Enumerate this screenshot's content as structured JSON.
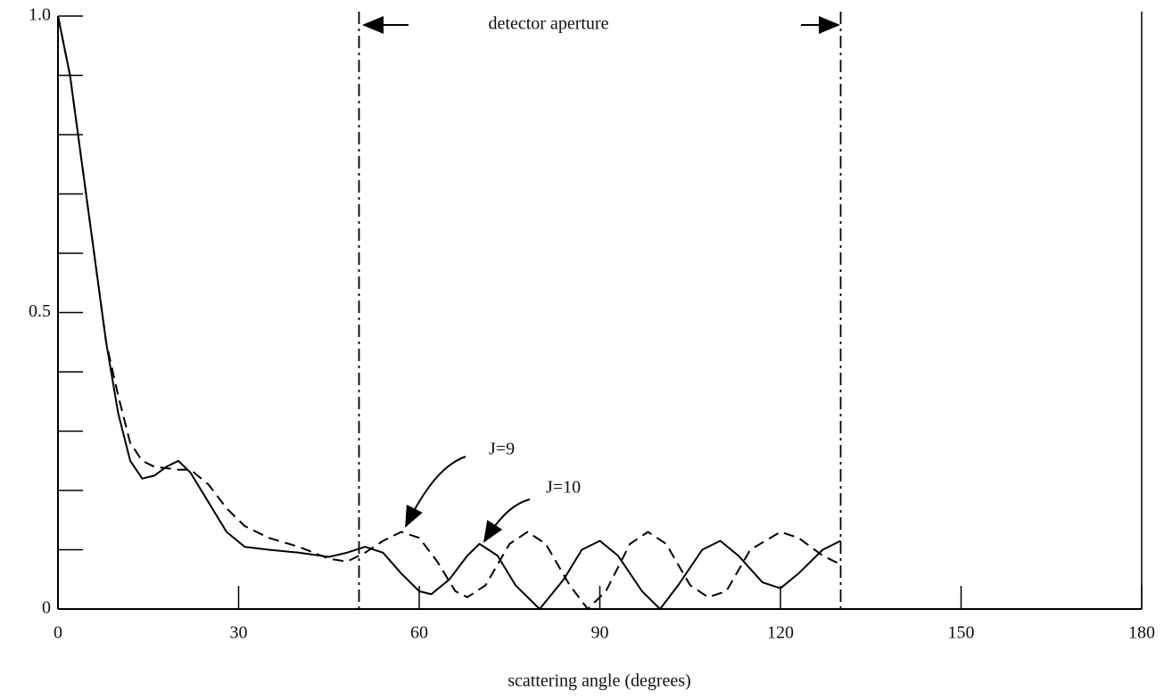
{
  "chart_data": {
    "type": "line",
    "xlabel": "scattering angle (degrees)",
    "xlim": [
      0,
      180
    ],
    "xticks": [
      0,
      30,
      60,
      90,
      120,
      150,
      180
    ],
    "ylim": [
      0,
      1
    ],
    "yticks": [
      0,
      {
        "value": 0.5,
        "label": "0.5"
      },
      {
        "value": 1,
        "label": "1.0"
      }
    ],
    "yminorticks": [
      0.1,
      0.2,
      0.3,
      0.4,
      0.6,
      0.7,
      0.8,
      0.9
    ],
    "vlines": [
      50,
      130
    ],
    "annotation": "detector aperture",
    "series": [
      {
        "name": "J=10",
        "color": "#000000",
        "style": "solid",
        "x": [
          0,
          2,
          4,
          6,
          8,
          10,
          12,
          14,
          16,
          18,
          20,
          22,
          25,
          28,
          31,
          35,
          40,
          45,
          48,
          51,
          54,
          57,
          60,
          62,
          65,
          68,
          70,
          73,
          76,
          80,
          84,
          87,
          90,
          93,
          97,
          100,
          103,
          107,
          110,
          113,
          117,
          120,
          123,
          127,
          130
        ],
        "values": [
          1.0,
          0.9,
          0.75,
          0.6,
          0.45,
          0.33,
          0.25,
          0.22,
          0.225,
          0.24,
          0.25,
          0.23,
          0.18,
          0.13,
          0.105,
          0.1,
          0.095,
          0.088,
          0.095,
          0.105,
          0.095,
          0.06,
          0.03,
          0.025,
          0.05,
          0.09,
          0.11,
          0.09,
          0.04,
          0.0,
          0.05,
          0.1,
          0.115,
          0.09,
          0.03,
          0.0,
          0.04,
          0.1,
          0.115,
          0.09,
          0.045,
          0.035,
          0.06,
          0.1,
          0.115
        ]
      },
      {
        "name": "J=9",
        "color": "#000000",
        "style": "dashed",
        "x": [
          0,
          2,
          4,
          6,
          8,
          10,
          12,
          14,
          16,
          20,
          22,
          25,
          28,
          31,
          35,
          40,
          45,
          48,
          51,
          54,
          57,
          60,
          63,
          66,
          68,
          71,
          75,
          78,
          81,
          85,
          88,
          91,
          95,
          98,
          101,
          105,
          108,
          111,
          115,
          120,
          123,
          127,
          130
        ],
        "values": [
          1.0,
          0.9,
          0.75,
          0.6,
          0.45,
          0.36,
          0.28,
          0.25,
          0.24,
          0.235,
          0.235,
          0.21,
          0.17,
          0.14,
          0.12,
          0.105,
          0.085,
          0.08,
          0.095,
          0.115,
          0.13,
          0.12,
          0.08,
          0.03,
          0.02,
          0.04,
          0.11,
          0.13,
          0.11,
          0.04,
          0.0,
          0.03,
          0.11,
          0.13,
          0.11,
          0.04,
          0.02,
          0.03,
          0.1,
          0.13,
          0.12,
          0.09,
          0.075
        ]
      }
    ]
  }
}
